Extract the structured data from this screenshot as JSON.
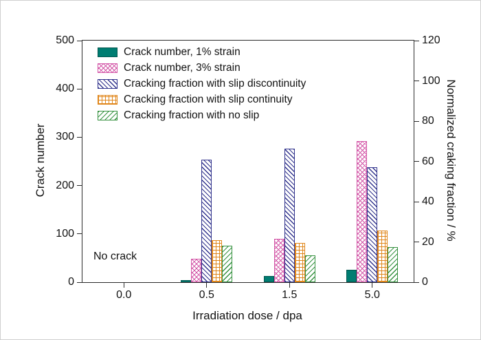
{
  "chart_data": {
    "type": "bar",
    "title": "",
    "xlabel": "Irradiation dose / dpa",
    "ylabel_left": "Crack number",
    "ylabel_right": "Normalized craking fraction / %",
    "categories": [
      "0.0",
      "0.5",
      "1.5",
      "5.0"
    ],
    "left_axis": {
      "min": 0,
      "max": 500,
      "ticks": [
        "0",
        "100",
        "200",
        "300",
        "400",
        "500"
      ]
    },
    "right_axis": {
      "min": 0,
      "max": 120,
      "ticks": [
        "0",
        "20",
        "40",
        "60",
        "80",
        "100",
        "120"
      ]
    },
    "annotation": "No crack",
    "legend_position": "top-left",
    "grid": false,
    "series": [
      {
        "name": "Crack number, 1% strain",
        "axis": "left",
        "pattern": "solid",
        "color": "#007d72",
        "values": [
          0,
          5,
          13,
          25
        ]
      },
      {
        "name": "Crack number, 3% strain",
        "axis": "left",
        "pattern": "crosshatch",
        "color": "#d356a7",
        "values": [
          0,
          48,
          90,
          292
        ]
      },
      {
        "name": "Cracking fraction with slip discontinuity",
        "axis": "right",
        "pattern": "diagonal-back",
        "color": "#30328c",
        "values": [
          0,
          61,
          66.5,
          57
        ]
      },
      {
        "name": "Cracking fraction with slip continuity",
        "axis": "right",
        "pattern": "grid",
        "color": "#e0861a",
        "values": [
          0,
          21,
          19.5,
          25.5
        ]
      },
      {
        "name": "Cracking fraction with no slip",
        "axis": "right",
        "pattern": "diagonal-forward",
        "color": "#35913f",
        "values": [
          0,
          18,
          13.5,
          17.5
        ]
      }
    ]
  }
}
